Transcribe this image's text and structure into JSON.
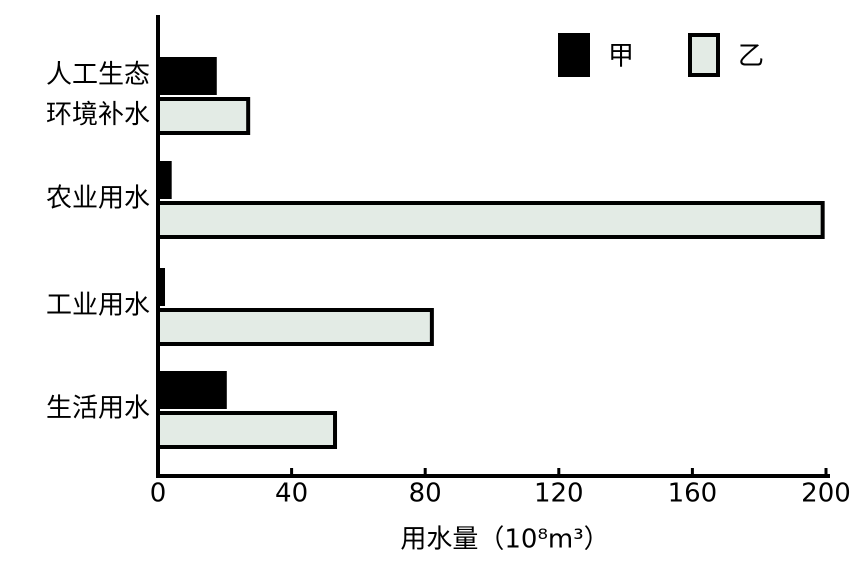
{
  "chart_data": {
    "type": "bar",
    "orientation": "horizontal",
    "x_label": "用水量（10⁸m³）",
    "categories": [
      "人工生态\n环境补水",
      "农业用水",
      "工业用水",
      "生活用水"
    ],
    "series": [
      {
        "name": "甲",
        "color": "#000000",
        "values": [
          17,
          3.5,
          1.5,
          20
        ]
      },
      {
        "name": "乙",
        "color": "#e3ebe5",
        "values": [
          27,
          199,
          82,
          53
        ]
      }
    ],
    "xlim": [
      0,
      200
    ],
    "xticks": [
      0,
      40,
      80,
      120,
      160,
      200
    ],
    "grid": false,
    "legend": "top-right"
  }
}
